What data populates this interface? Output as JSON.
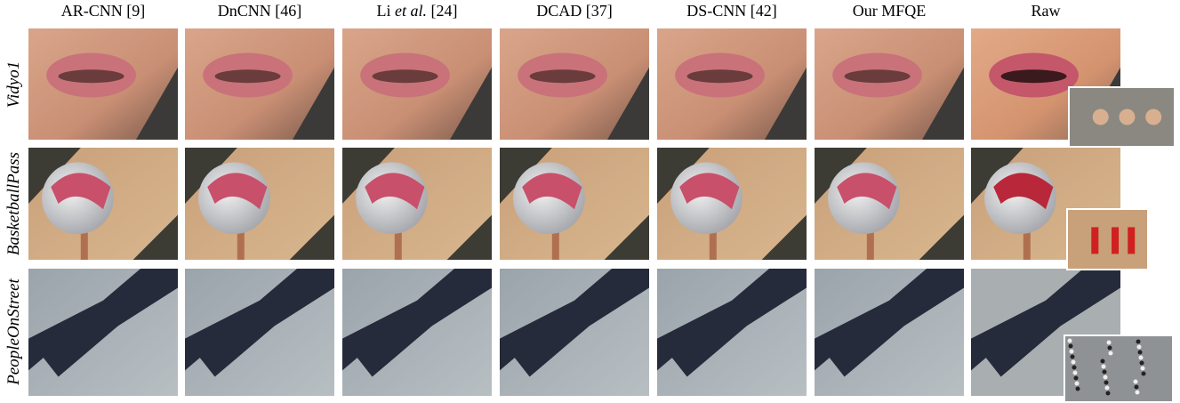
{
  "figure": {
    "columns": [
      "AR-CNN [9]",
      "DnCNN [46]",
      {
        "name": "Li",
        "italic": "et al.",
        "ref": "[24]"
      },
      "DCAD [37]",
      "DS-CNN [42]",
      "Our MFQE",
      "Raw"
    ],
    "rows": [
      "Vidyo1",
      "BasketballPass",
      "PeopleOnStreet"
    ]
  }
}
